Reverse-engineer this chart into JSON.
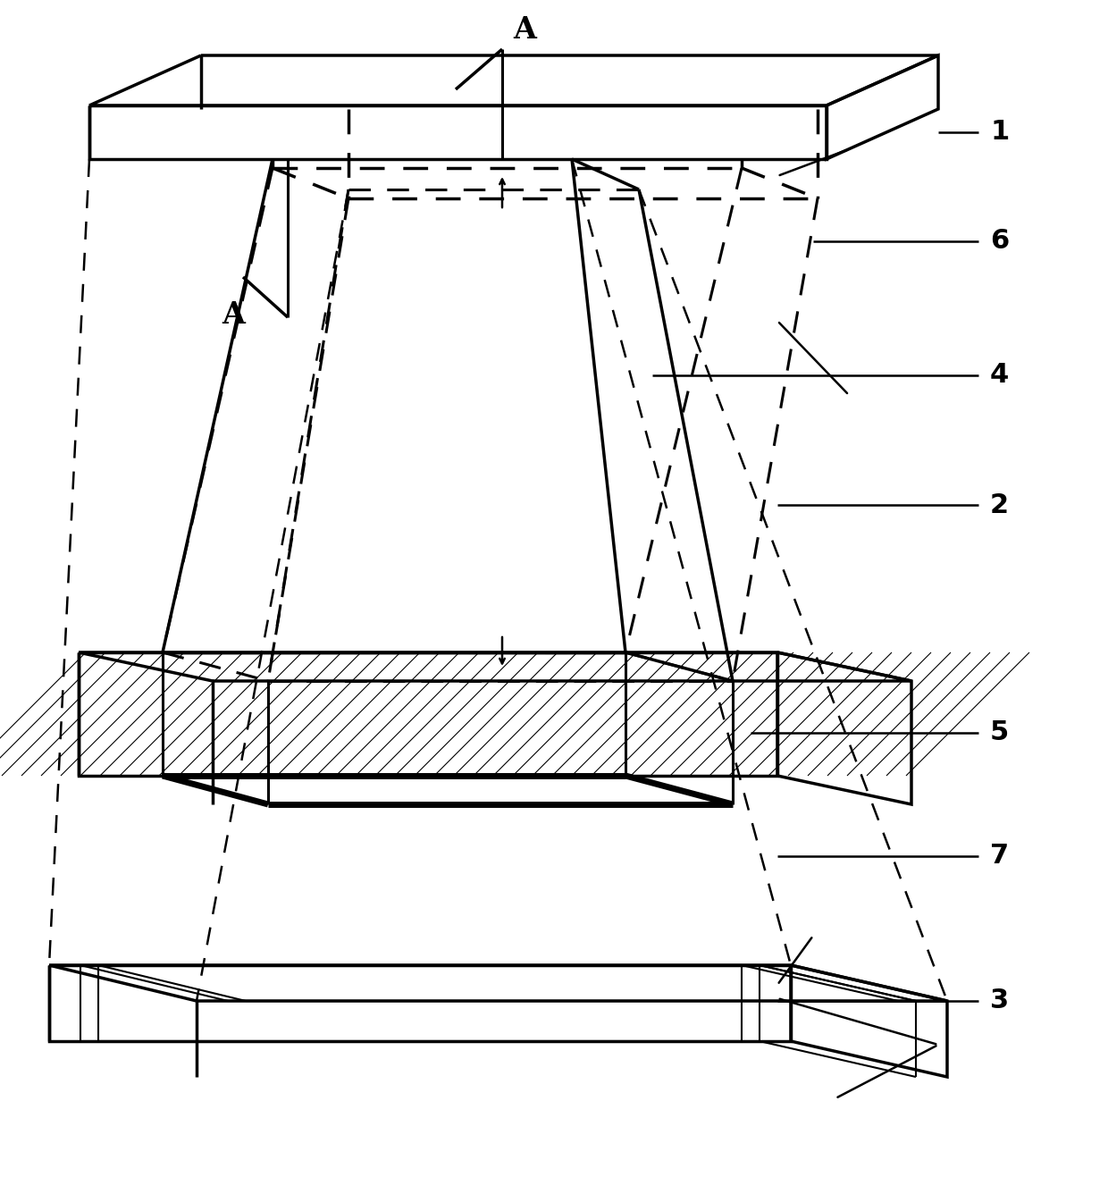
{
  "bg_color": "#ffffff",
  "line_color": "#000000",
  "label_fontsize": 22,
  "figsize": [
    12.4,
    13.17
  ],
  "dpi": 100
}
